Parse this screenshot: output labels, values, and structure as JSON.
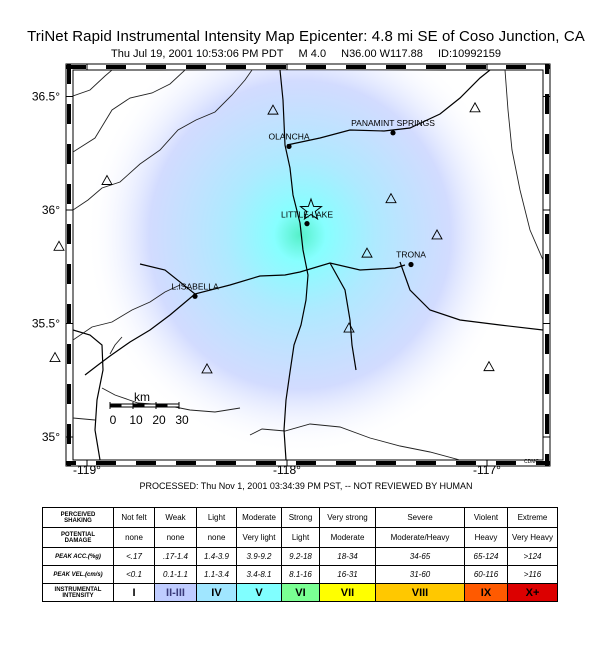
{
  "header": {
    "title": "TriNet Rapid Instrumental Intensity Map Epicenter: 4.8 mi SE of Coso Junction, CA",
    "date": "Thu Jul 19, 2001 10:53:06 PM PDT",
    "magnitude": "M 4.0",
    "location": "N36.00 W117.88",
    "event_id": "ID:10992159"
  },
  "map": {
    "lat_labels": [
      "36.5°",
      "36°",
      "35.5°",
      "35°"
    ],
    "lon_labels": [
      "-119°",
      "-118°",
      "-117°"
    ],
    "towns": [
      {
        "name": "OLANCHA",
        "lon": -117.99,
        "lat": 36.28
      },
      {
        "name": "PANAMINT SPRINGS",
        "lon": -117.47,
        "lat": 36.34
      },
      {
        "name": "LITTLE LAKE",
        "lon": -117.9,
        "lat": 35.94
      },
      {
        "name": "TRONA",
        "lon": -117.38,
        "lat": 35.76
      },
      {
        "name": "L.ISABELLA",
        "lon": -118.46,
        "lat": 35.62
      }
    ],
    "epicenter": {
      "lon": -117.88,
      "lat": 36.0
    },
    "stations": [
      {
        "lon": -118.07,
        "lat": 36.44
      },
      {
        "lon": -117.06,
        "lat": 36.45
      },
      {
        "lon": -118.9,
        "lat": 36.13
      },
      {
        "lon": -119.14,
        "lat": 35.84
      },
      {
        "lon": -117.48,
        "lat": 36.05
      },
      {
        "lon": -117.25,
        "lat": 35.89
      },
      {
        "lon": -117.6,
        "lat": 35.81
      },
      {
        "lon": -117.69,
        "lat": 35.48
      },
      {
        "lon": -118.4,
        "lat": 35.3
      },
      {
        "lon": -119.16,
        "lat": 35.35
      },
      {
        "lon": -116.99,
        "lat": 35.31
      }
    ],
    "scale": {
      "title": "km",
      "ticks": [
        "0",
        "10",
        "20",
        "30"
      ]
    },
    "credit": "CDMG"
  },
  "processed": "PROCESSED: Thu Nov 1, 2001 03:34:39 PM PST, -- NOT REVIEWED BY HUMAN",
  "legend": {
    "perceived_label": [
      "PERCEIVED",
      "SHAKING"
    ],
    "damage_label": [
      "POTENTIAL",
      "DAMAGE"
    ],
    "acc_label": "PEAK ACC.(%g)",
    "vel_label": "PEAK VEL.(cm/s)",
    "intensity_label": [
      "INSTRUMENTAL",
      "INTENSITY"
    ],
    "columns": [
      {
        "shaking": "Not felt",
        "damage": "none",
        "acc": "<.17",
        "vel": "<0.1",
        "intensity": "I",
        "color": "#ffffff"
      },
      {
        "shaking": "Weak",
        "damage": "none",
        "acc": ".17-1.4",
        "vel": "0.1-1.1",
        "intensity": "II-III",
        "color": "#bfccff"
      },
      {
        "shaking": "Light",
        "damage": "none",
        "acc": "1.4-3.9",
        "vel": "1.1-3.4",
        "intensity": "IV",
        "color": "#a0e6ff"
      },
      {
        "shaking": "Moderate",
        "damage": "Very light",
        "acc": "3.9-9.2",
        "vel": "3.4-8.1",
        "intensity": "V",
        "color": "#80ffff"
      },
      {
        "shaking": "Strong",
        "damage": "Light",
        "acc": "9.2-18",
        "vel": "8.1-16",
        "intensity": "VI",
        "color": "#7aff93"
      },
      {
        "shaking": "Very strong",
        "damage": "Moderate",
        "acc": "18-34",
        "vel": "16-31",
        "intensity": "VII",
        "color": "#ffff00"
      },
      {
        "shaking": "Severe",
        "damage": "Moderate/Heavy",
        "acc": "34-65",
        "vel": "31-60",
        "intensity": "VIII",
        "color": "#ffc800"
      },
      {
        "shaking": "Violent",
        "damage": "Heavy",
        "acc": "65-124",
        "vel": "60-116",
        "intensity": "IX",
        "color": "#ff5a00"
      },
      {
        "shaking": "Extreme",
        "damage": "Very Heavy",
        "acc": ">124",
        "vel": ">116",
        "intensity": "X+",
        "color": "#dc0000"
      }
    ]
  }
}
